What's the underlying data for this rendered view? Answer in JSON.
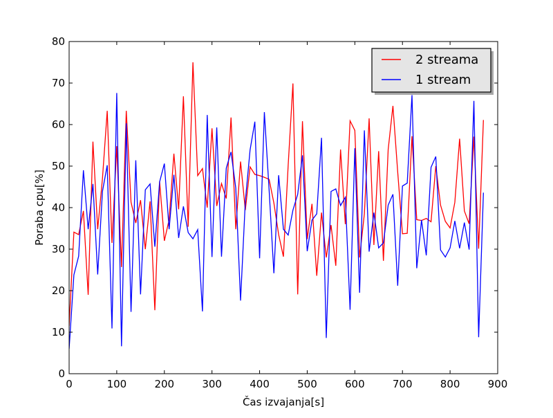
{
  "chart_data": {
    "type": "line",
    "xlabel": "Čas izvajanja[s]",
    "ylabel": "Poraba cpu[%]",
    "xlim": [
      0,
      900
    ],
    "ylim": [
      0,
      80
    ],
    "xticks": [
      0,
      100,
      200,
      300,
      400,
      500,
      600,
      700,
      800,
      900
    ],
    "yticks": [
      0,
      10,
      20,
      30,
      40,
      50,
      60,
      70,
      80
    ],
    "grid": false,
    "legend_position": "top-right",
    "series": [
      {
        "name": "2 streama",
        "color": "#ff0000",
        "x": [
          0,
          10,
          20,
          30,
          40,
          50,
          60,
          70,
          80,
          90,
          100,
          110,
          120,
          130,
          140,
          150,
          160,
          170,
          180,
          190,
          200,
          210,
          220,
          230,
          240,
          250,
          260,
          270,
          280,
          290,
          300,
          310,
          320,
          330,
          340,
          350,
          360,
          370,
          380,
          390,
          400,
          410,
          420,
          430,
          440,
          450,
          460,
          470,
          480,
          490,
          500,
          510,
          520,
          530,
          540,
          550,
          560,
          570,
          580,
          590,
          600,
          610,
          620,
          630,
          640,
          650,
          660,
          670,
          680,
          690,
          700,
          710,
          720,
          730,
          740,
          750,
          760,
          770,
          780,
          790,
          800,
          810,
          820,
          830,
          840,
          850,
          860,
          870
        ],
        "y": [
          11.5,
          34.1,
          33.5,
          39.2,
          19.0,
          55.9,
          34.8,
          47.0,
          63.3,
          31.5,
          54.8,
          25.7,
          63.3,
          41.3,
          36.3,
          41.8,
          30.0,
          41.5,
          15.3,
          46.3,
          32.0,
          37.1,
          53.0,
          39.6,
          66.8,
          35.4,
          75.0,
          47.7,
          49.4,
          40.0,
          59.1,
          40.4,
          45.8,
          42.2,
          61.7,
          34.8,
          51.1,
          39.4,
          49.8,
          48.0,
          47.7,
          47.3,
          46.8,
          41.1,
          33.5,
          28.2,
          50.2,
          69.9,
          19.1,
          60.8,
          32.4,
          40.9,
          23.6,
          38.8,
          28.0,
          35.8,
          26.0,
          54.0,
          36.0,
          60.9,
          58.6,
          28.0,
          38.5,
          61.5,
          31.0,
          53.6,
          27.2,
          54.0,
          64.5,
          48.6,
          33.7,
          33.8,
          57.2,
          37.1,
          36.9,
          37.4,
          36.6,
          50.0,
          40.6,
          36.7,
          35.1,
          41.3,
          56.6,
          39.2,
          36.1,
          57.1,
          30.1,
          61.1
        ]
      },
      {
        "name": "1 stream",
        "color": "#0000ff",
        "x": [
          0,
          10,
          20,
          30,
          40,
          50,
          60,
          70,
          80,
          90,
          100,
          110,
          120,
          130,
          140,
          150,
          160,
          170,
          180,
          190,
          200,
          210,
          220,
          230,
          240,
          250,
          260,
          270,
          280,
          290,
          300,
          310,
          320,
          330,
          340,
          350,
          360,
          370,
          380,
          390,
          400,
          410,
          420,
          430,
          440,
          450,
          460,
          470,
          480,
          490,
          500,
          510,
          520,
          530,
          540,
          550,
          560,
          570,
          580,
          590,
          600,
          610,
          620,
          630,
          640,
          650,
          660,
          670,
          680,
          690,
          700,
          710,
          720,
          730,
          740,
          750,
          760,
          770,
          780,
          790,
          800,
          810,
          820,
          830,
          840,
          850,
          860,
          870
        ],
        "y": [
          6.0,
          23.8,
          28.3,
          49.0,
          34.8,
          45.7,
          23.9,
          43.9,
          50.2,
          10.9,
          67.6,
          6.6,
          60.3,
          14.9,
          51.4,
          19.1,
          44.3,
          45.7,
          30.6,
          46.2,
          50.6,
          34.8,
          47.9,
          32.7,
          40.3,
          34.0,
          32.5,
          34.7,
          15.0,
          62.3,
          28.1,
          59.3,
          28.2,
          49.5,
          53.4,
          44.7,
          17.6,
          41.5,
          53.9,
          60.7,
          27.8,
          63.0,
          44.2,
          24.2,
          47.8,
          34.8,
          33.4,
          39.4,
          43.2,
          52.6,
          29.5,
          37.0,
          38.5,
          56.8,
          8.6,
          43.9,
          44.5,
          40.5,
          42.5,
          15.4,
          54.3,
          19.5,
          58.6,
          29.4,
          38.8,
          30.3,
          31.5,
          40.6,
          43.2,
          21.2,
          45.2,
          45.9,
          67.1,
          25.4,
          37.0,
          28.5,
          49.7,
          52.3,
          29.8,
          28.1,
          30.3,
          36.8,
          30.2,
          36.4,
          29.9,
          65.7,
          8.8,
          43.6
        ]
      }
    ]
  }
}
